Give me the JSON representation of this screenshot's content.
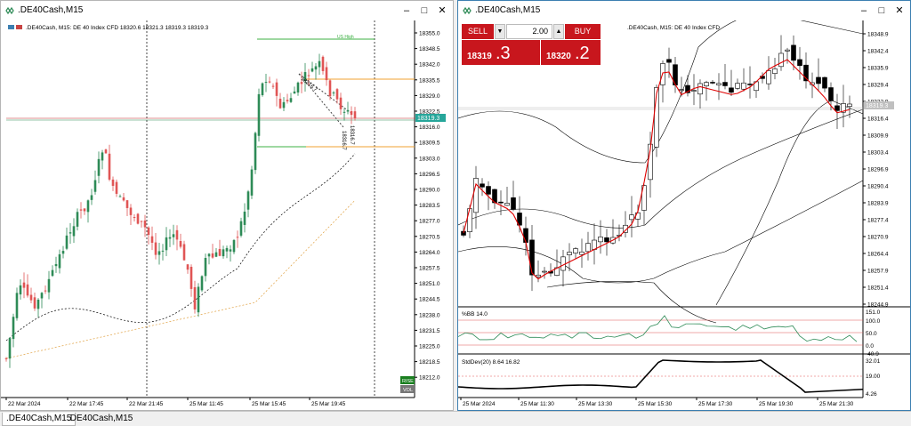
{
  "windows": {
    "left": {
      "title": ".DE40Cash,M15",
      "info": ".DE40Cash, M15:  DE 40 Index CFD   18320.6 18321.3 18319.3 18319.3",
      "price_labels": [
        "18355.0",
        "18348.5",
        "18342.0",
        "18335.5",
        "18329.0",
        "18322.5",
        "18316.0",
        "18309.5",
        "18303.0",
        "18296.5",
        "18290.0",
        "18283.5",
        "18277.0",
        "18270.5",
        "18264.0",
        "18257.5",
        "18251.0",
        "18244.5",
        "18238.0",
        "18231.5",
        "18225.0",
        "18218.5",
        "18212.0"
      ],
      "current_price": "18319.3",
      "time_labels": [
        "22 Mar 2024",
        "22 Mar 17:45",
        "22 Mar 21:45",
        "25 Mar 11:45",
        "25 Mar 15:45",
        "25 Mar 19:45"
      ],
      "annotation": "US High",
      "fib_labels": [
        "18316.7",
        "18316.7",
        "18316.7"
      ],
      "rise_label": "RISE",
      "vol_label": "VOL"
    },
    "right": {
      "title": ".DE40Cash,M15",
      "info": ".DE40Cash, M15:  DE 40 Index CFD",
      "price_labels": [
        "18348.9",
        "18342.4",
        "18335.9",
        "18329.4",
        "18322.9",
        "18316.4",
        "18309.9",
        "18303.4",
        "18296.9",
        "18290.4",
        "18283.9",
        "18277.4",
        "18270.9",
        "18264.4",
        "18257.9",
        "18251.4",
        "18244.9"
      ],
      "current_price": "18319.3",
      "time_labels": [
        "25 Mar 2024",
        "25 Mar 11:30",
        "25 Mar 13:30",
        "25 Mar 15:30",
        "25 Mar 17:30",
        "25 Mar 19:30",
        "25 Mar 21:30"
      ],
      "one_click": {
        "sell": "SELL",
        "buy": "BUY",
        "volume": "2.00",
        "sell_small": "18319",
        "sell_big": ".3",
        "buy_small": "18320",
        "buy_big": ".2"
      },
      "bb_panel": {
        "label": "%BB 14.0",
        "levels": [
          "151.0",
          "100.0",
          "50.0",
          "0.0",
          "-40.9"
        ]
      },
      "sd_panel": {
        "label": "StdDev(20) 8.64 16.82",
        "levels": [
          "32.01",
          "19.00",
          "4.26"
        ]
      }
    }
  },
  "tabs": [
    ".DE40Cash,M15",
    ".DE40Cash,M15"
  ],
  "colors": {
    "bull": "#2e8b57",
    "bear": "#e05555",
    "accent": "#26a69a",
    "sell": "#c8161d",
    "ma_red": "#e00000"
  }
}
